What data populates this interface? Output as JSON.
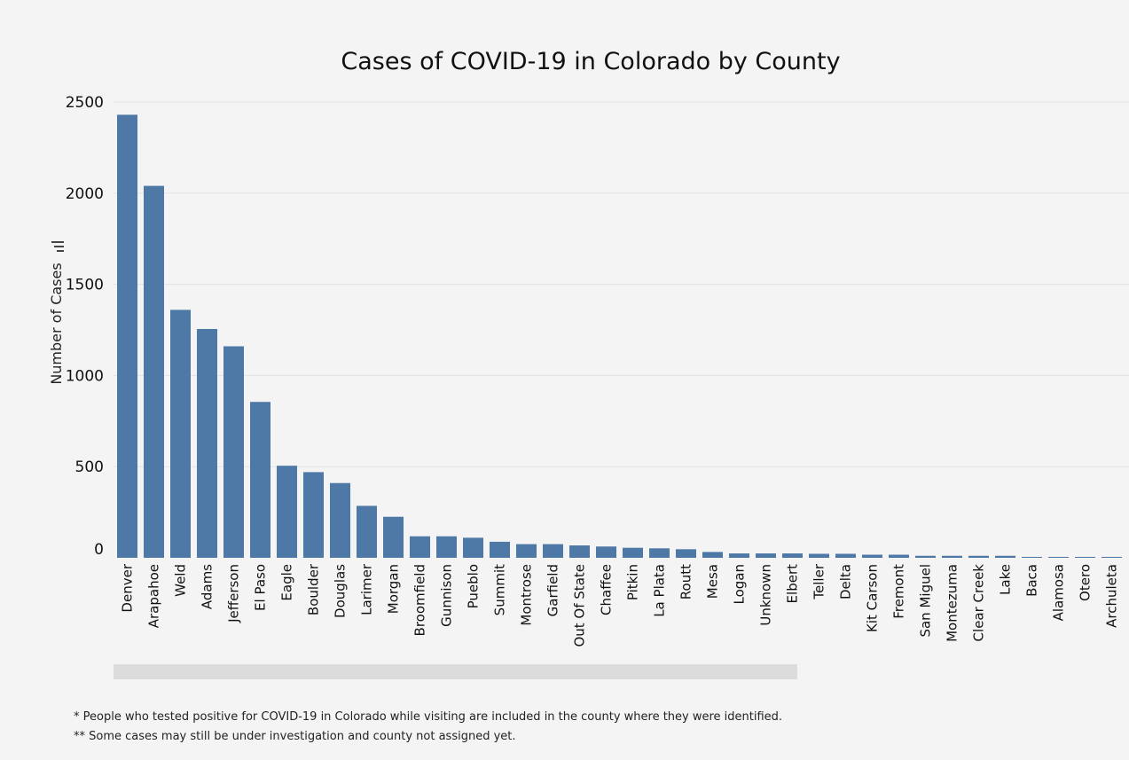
{
  "chart_data": {
    "type": "bar",
    "title": "Cases of COVID-19 in Colorado by County",
    "xlabel": "",
    "ylabel": "Number of Cases",
    "ylim": [
      0,
      2500
    ],
    "yticks": [
      0,
      500,
      1000,
      1500,
      2000,
      2500
    ],
    "grid": true,
    "bar_color": "#4e79a7",
    "categories": [
      "Denver",
      "Arapahoe",
      "Weld",
      "Adams",
      "Jefferson",
      "El Paso",
      "Eagle",
      "Boulder",
      "Douglas",
      "Larimer",
      "Morgan",
      "Broomfield",
      "Gunnison",
      "Pueblo",
      "Summit",
      "Montrose",
      "Garfield",
      "Out Of State",
      "Chaffee",
      "Pitkin",
      "La Plata",
      "Routt",
      "Mesa",
      "Logan",
      "Unknown",
      "Elbert",
      "Teller",
      "Delta",
      "Kit Carson",
      "Fremont",
      "San Miguel",
      "Montezuma",
      "Clear Creek",
      "Lake",
      "Baca",
      "Alamosa",
      "Otero",
      "Archuleta"
    ],
    "values": [
      2430,
      2040,
      1360,
      1255,
      1160,
      855,
      505,
      470,
      410,
      285,
      225,
      118,
      118,
      110,
      88,
      75,
      75,
      68,
      62,
      55,
      52,
      47,
      32,
      24,
      24,
      24,
      22,
      22,
      17,
      17,
      11,
      11,
      11,
      11,
      5,
      5,
      5,
      5
    ]
  },
  "footnotes": [
    "* People who tested positive for COVID-19 in Colorado while visiting are included in the county where they were identified.",
    "** Some cases may still be under investigation and county not assigned yet."
  ]
}
